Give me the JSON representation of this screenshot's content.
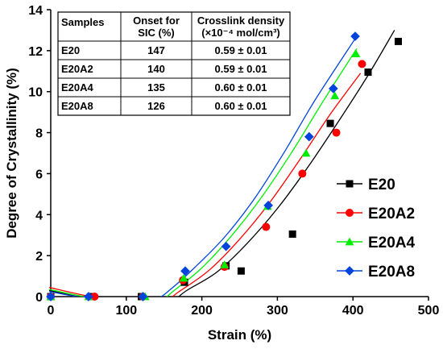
{
  "chart_data": {
    "type": "scatter",
    "xlabel": "Strain (%)",
    "ylabel": "Degree of Crystallinity (%)",
    "xlim": [
      0,
      500
    ],
    "ylim": [
      0,
      14
    ],
    "x_ticks": [
      "0",
      "100",
      "200",
      "300",
      "400",
      "500"
    ],
    "y_ticks": [
      "0",
      "2",
      "4",
      "6",
      "8",
      "10",
      "12",
      "14"
    ],
    "legend_position": "lower-right",
    "series": [
      {
        "name": "E20",
        "color": "#000000",
        "marker": "square",
        "points": [
          [
            0,
            0
          ],
          [
            55,
            0
          ],
          [
            120,
            0
          ],
          [
            177,
            0.7
          ],
          [
            232,
            1.5
          ],
          [
            252,
            1.25
          ],
          [
            320,
            3.05
          ],
          [
            370,
            8.45
          ],
          [
            420,
            10.95
          ],
          [
            460,
            12.45
          ]
        ],
        "fit": [
          [
            -2,
            0.3
          ],
          [
            60,
            -0.15
          ],
          [
            130,
            -0.25
          ],
          [
            160,
            -0.2
          ],
          [
            180,
            0.3
          ],
          [
            220,
            1.2
          ],
          [
            260,
            2.6
          ],
          [
            300,
            4.3
          ],
          [
            340,
            6.3
          ],
          [
            380,
            8.5
          ],
          [
            420,
            10.8
          ],
          [
            455,
            13.0
          ]
        ]
      },
      {
        "name": "E20A2",
        "color": "#ff0000",
        "marker": "circle",
        "points": [
          [
            0,
            0
          ],
          [
            58,
            0
          ],
          [
            122,
            0
          ],
          [
            175,
            0.8
          ],
          [
            230,
            1.45
          ],
          [
            285,
            3.4
          ],
          [
            333,
            6.0
          ],
          [
            378,
            8.0
          ],
          [
            412,
            11.35
          ]
        ],
        "fit": [
          [
            -2,
            0.45
          ],
          [
            60,
            -0.05
          ],
          [
            110,
            -0.25
          ],
          [
            150,
            -0.2
          ],
          [
            170,
            0.25
          ],
          [
            210,
            1.3
          ],
          [
            250,
            2.8
          ],
          [
            290,
            4.6
          ],
          [
            330,
            6.7
          ],
          [
            370,
            8.9
          ],
          [
            410,
            10.9
          ]
        ]
      },
      {
        "name": "E20A4",
        "color": "#00ee00",
        "marker": "triangle",
        "points": [
          [
            0,
            0
          ],
          [
            50,
            0
          ],
          [
            125,
            0
          ],
          [
            176,
            0.9
          ],
          [
            230,
            1.55
          ],
          [
            287,
            4.4
          ],
          [
            338,
            7.0
          ],
          [
            376,
            9.8
          ],
          [
            404,
            11.85
          ]
        ],
        "fit": [
          [
            -2,
            0.35
          ],
          [
            60,
            -0.1
          ],
          [
            110,
            -0.2
          ],
          [
            145,
            -0.15
          ],
          [
            165,
            0.35
          ],
          [
            200,
            1.4
          ],
          [
            240,
            3.0
          ],
          [
            280,
            4.9
          ],
          [
            320,
            7.1
          ],
          [
            360,
            9.5
          ],
          [
            405,
            12.1
          ]
        ]
      },
      {
        "name": "E20A8",
        "color": "#0044dd",
        "marker": "diamond",
        "points": [
          [
            0,
            0
          ],
          [
            50,
            0
          ],
          [
            122,
            0
          ],
          [
            178,
            1.25
          ],
          [
            232,
            2.45
          ],
          [
            288,
            4.45
          ],
          [
            342,
            7.8
          ],
          [
            374,
            10.15
          ],
          [
            403,
            12.7
          ]
        ],
        "fit": [
          [
            -2,
            0.25
          ],
          [
            60,
            -0.15
          ],
          [
            110,
            -0.2
          ],
          [
            140,
            -0.1
          ],
          [
            160,
            0.4
          ],
          [
            190,
            1.4
          ],
          [
            230,
            2.9
          ],
          [
            270,
            4.8
          ],
          [
            310,
            7.1
          ],
          [
            350,
            9.6
          ],
          [
            405,
            12.7
          ]
        ]
      }
    ],
    "table": {
      "headers": [
        "Samples",
        "Onset for\nSIC (%)",
        "Crosslink density\n(×10⁻⁴ mol/cm³)"
      ],
      "rows": [
        [
          "E20",
          "147",
          "0.59 ± 0.01"
        ],
        [
          "E20A2",
          "140",
          "0.59 ± 0.01"
        ],
        [
          "E20A4",
          "135",
          "0.60 ± 0.01"
        ],
        [
          "E20A8",
          "126",
          "0.60 ± 0.01"
        ]
      ]
    }
  }
}
